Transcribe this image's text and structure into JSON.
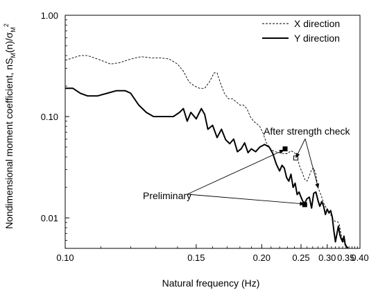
{
  "chart_data": {
    "type": "line",
    "xlabel": "Natural frequency (Hz)",
    "ylabel_main": "Nondimensional moment coefficient, nS",
    "ylabel_sub1": "M",
    "ylabel_mid": "(n)/σ",
    "ylabel_sub2": "M",
    "ylabel_sup": "2",
    "x_scale": "reciprocal",
    "y_scale": "log",
    "xlim": [
      0.1,
      0.4
    ],
    "ylim": [
      0.005,
      1.0
    ],
    "x_ticks": [
      {
        "value": 0.1,
        "label": "0.10"
      },
      {
        "value": 0.15,
        "label": "0.15"
      },
      {
        "value": 0.2,
        "label": "0.20"
      },
      {
        "value": 0.25,
        "label": "0.25"
      },
      {
        "value": 0.3,
        "label": "0.30"
      },
      {
        "value": 0.35,
        "label": "0.35"
      },
      {
        "value": 0.4,
        "label": "0.40"
      }
    ],
    "y_ticks": [
      {
        "value": 1.0,
        "label": "1.00"
      },
      {
        "value": 0.1,
        "label": "0.10"
      },
      {
        "value": 0.01,
        "label": "0.01"
      }
    ],
    "legend_position": "top-right",
    "series": [
      {
        "name": "X direction",
        "style": "dashed",
        "points": [
          [
            0.1,
            0.36
          ],
          [
            0.102,
            0.38
          ],
          [
            0.104,
            0.4
          ],
          [
            0.106,
            0.4
          ],
          [
            0.108,
            0.38
          ],
          [
            0.11,
            0.36
          ],
          [
            0.113,
            0.33
          ],
          [
            0.116,
            0.34
          ],
          [
            0.12,
            0.37
          ],
          [
            0.124,
            0.39
          ],
          [
            0.128,
            0.38
          ],
          [
            0.132,
            0.38
          ],
          [
            0.136,
            0.37
          ],
          [
            0.14,
            0.33
          ],
          [
            0.143,
            0.28
          ],
          [
            0.146,
            0.22
          ],
          [
            0.149,
            0.2
          ],
          [
            0.152,
            0.19
          ],
          [
            0.155,
            0.19
          ],
          [
            0.158,
            0.22
          ],
          [
            0.161,
            0.27
          ],
          [
            0.163,
            0.27
          ],
          [
            0.165,
            0.22
          ],
          [
            0.168,
            0.17
          ],
          [
            0.171,
            0.15
          ],
          [
            0.174,
            0.15
          ],
          [
            0.177,
            0.14
          ],
          [
            0.18,
            0.13
          ],
          [
            0.183,
            0.13
          ],
          [
            0.186,
            0.12
          ],
          [
            0.189,
            0.1
          ],
          [
            0.192,
            0.09
          ],
          [
            0.195,
            0.085
          ],
          [
            0.198,
            0.08
          ],
          [
            0.201,
            0.07
          ],
          [
            0.205,
            0.055
          ],
          [
            0.21,
            0.047
          ],
          [
            0.215,
            0.045
          ],
          [
            0.22,
            0.044
          ],
          [
            0.225,
            0.043
          ],
          [
            0.23,
            0.043
          ],
          [
            0.235,
            0.046
          ],
          [
            0.24,
            0.044
          ],
          [
            0.244,
            0.04
          ],
          [
            0.248,
            0.032
          ],
          [
            0.252,
            0.028
          ],
          [
            0.256,
            0.024
          ],
          [
            0.26,
            0.023
          ],
          [
            0.264,
            0.026
          ],
          [
            0.268,
            0.03
          ],
          [
            0.272,
            0.031
          ],
          [
            0.276,
            0.027
          ],
          [
            0.28,
            0.02
          ],
          [
            0.284,
            0.018
          ],
          [
            0.288,
            0.016
          ],
          [
            0.292,
            0.014
          ],
          [
            0.296,
            0.013
          ],
          [
            0.3,
            0.012
          ],
          [
            0.305,
            0.011
          ],
          [
            0.31,
            0.0105
          ],
          [
            0.315,
            0.0095
          ],
          [
            0.32,
            0.0092
          ],
          [
            0.325,
            0.0092
          ],
          [
            0.33,
            0.0088
          ],
          [
            0.335,
            0.007
          ],
          [
            0.34,
            0.006
          ],
          [
            0.345,
            0.0058
          ],
          [
            0.35,
            0.0052
          ],
          [
            0.36,
            0.0051
          ]
        ]
      },
      {
        "name": "Y direction",
        "style": "solid",
        "points": [
          [
            0.1,
            0.19
          ],
          [
            0.102,
            0.19
          ],
          [
            0.104,
            0.17
          ],
          [
            0.106,
            0.16
          ],
          [
            0.109,
            0.16
          ],
          [
            0.112,
            0.17
          ],
          [
            0.115,
            0.18
          ],
          [
            0.118,
            0.18
          ],
          [
            0.12,
            0.17
          ],
          [
            0.123,
            0.13
          ],
          [
            0.126,
            0.11
          ],
          [
            0.129,
            0.1
          ],
          [
            0.132,
            0.1
          ],
          [
            0.135,
            0.1
          ],
          [
            0.138,
            0.1
          ],
          [
            0.141,
            0.11
          ],
          [
            0.143,
            0.12
          ],
          [
            0.145,
            0.09
          ],
          [
            0.147,
            0.11
          ],
          [
            0.15,
            0.095
          ],
          [
            0.153,
            0.12
          ],
          [
            0.155,
            0.105
          ],
          [
            0.157,
            0.075
          ],
          [
            0.16,
            0.082
          ],
          [
            0.163,
            0.062
          ],
          [
            0.166,
            0.075
          ],
          [
            0.169,
            0.059
          ],
          [
            0.172,
            0.054
          ],
          [
            0.175,
            0.06
          ],
          [
            0.178,
            0.045
          ],
          [
            0.181,
            0.048
          ],
          [
            0.184,
            0.055
          ],
          [
            0.187,
            0.044
          ],
          [
            0.19,
            0.048
          ],
          [
            0.194,
            0.045
          ],
          [
            0.198,
            0.05
          ],
          [
            0.203,
            0.053
          ],
          [
            0.208,
            0.05
          ],
          [
            0.212,
            0.043
          ],
          [
            0.216,
            0.034
          ],
          [
            0.22,
            0.029
          ],
          [
            0.223,
            0.033
          ],
          [
            0.226,
            0.031
          ],
          [
            0.229,
            0.025
          ],
          [
            0.232,
            0.023
          ],
          [
            0.235,
            0.027
          ],
          [
            0.238,
            0.02
          ],
          [
            0.241,
            0.022
          ],
          [
            0.244,
            0.017
          ],
          [
            0.247,
            0.018
          ],
          [
            0.25,
            0.016
          ],
          [
            0.253,
            0.0145
          ],
          [
            0.256,
            0.014
          ],
          [
            0.26,
            0.0155
          ],
          [
            0.264,
            0.016
          ],
          [
            0.268,
            0.0125
          ],
          [
            0.272,
            0.0175
          ],
          [
            0.276,
            0.018
          ],
          [
            0.28,
            0.015
          ],
          [
            0.284,
            0.013
          ],
          [
            0.288,
            0.0145
          ],
          [
            0.292,
            0.013
          ],
          [
            0.296,
            0.0108
          ],
          [
            0.3,
            0.0122
          ],
          [
            0.304,
            0.0112
          ],
          [
            0.308,
            0.0118
          ],
          [
            0.312,
            0.0102
          ],
          [
            0.316,
            0.0075
          ],
          [
            0.32,
            0.0058
          ],
          [
            0.324,
            0.007
          ],
          [
            0.328,
            0.0083
          ],
          [
            0.332,
            0.0068
          ],
          [
            0.336,
            0.0062
          ],
          [
            0.34,
            0.0058
          ],
          [
            0.344,
            0.0066
          ],
          [
            0.348,
            0.0054
          ],
          [
            0.352,
            0.0052
          ],
          [
            0.356,
            0.005
          ]
        ]
      }
    ],
    "markers": [
      {
        "series": "Y direction",
        "x": 0.227,
        "y": 0.048,
        "shape": "square",
        "filled": true
      },
      {
        "series": "Y direction",
        "x": 0.256,
        "y": 0.0135,
        "shape": "square",
        "filled": true
      },
      {
        "series": "X direction",
        "x": 0.242,
        "y": 0.039,
        "shape": "square",
        "filled": false
      }
    ],
    "annotations": [
      {
        "text": "After strength check",
        "points_to": [
          [
            0.242,
            0.039
          ],
          [
            0.281,
            0.0195
          ]
        ]
      },
      {
        "text": "Preliminary",
        "points_to": [
          [
            0.226,
            0.047
          ],
          [
            0.256,
            0.0137
          ]
        ]
      }
    ]
  }
}
